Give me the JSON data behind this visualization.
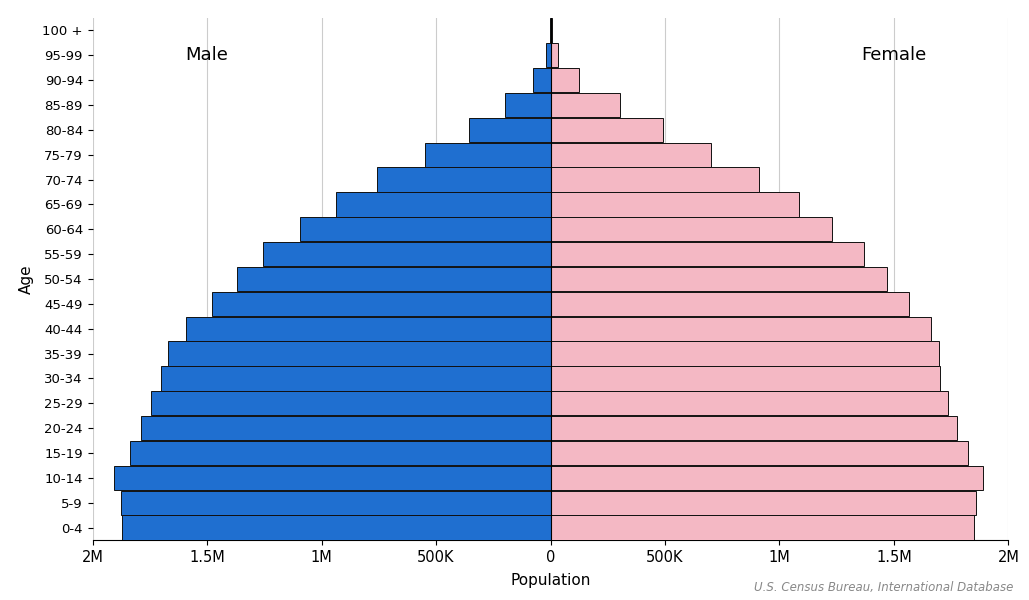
{
  "xlabel": "Population",
  "ylabel": "Age",
  "source": "U.S. Census Bureau, International Database",
  "age_groups": [
    "0-4",
    "5-9",
    "10-14",
    "15-19",
    "20-24",
    "25-29",
    "30-34",
    "35-39",
    "40-44",
    "45-49",
    "50-54",
    "55-59",
    "60-64",
    "65-69",
    "70-74",
    "75-79",
    "80-84",
    "85-89",
    "90-94",
    "95-99",
    "100 +"
  ],
  "male": [
    1870000,
    1875000,
    1905000,
    1835000,
    1790000,
    1745000,
    1700000,
    1670000,
    1590000,
    1480000,
    1370000,
    1255000,
    1095000,
    935000,
    760000,
    550000,
    355000,
    200000,
    75000,
    18000,
    3500
  ],
  "female": [
    1850000,
    1860000,
    1890000,
    1825000,
    1775000,
    1735000,
    1700000,
    1695000,
    1660000,
    1565000,
    1470000,
    1370000,
    1230000,
    1085000,
    910000,
    700000,
    490000,
    305000,
    125000,
    33000,
    5500
  ],
  "male_color": "#1f6fd0",
  "female_color": "#f4b8c4",
  "male_edgecolor": "#111111",
  "female_edgecolor": "#111111",
  "bar_linewidth": 0.7,
  "bar_height": 0.98,
  "xlim": 2000000,
  "xtick_values": [
    -2000000,
    -1500000,
    -1000000,
    -500000,
    0,
    500000,
    1000000,
    1500000,
    2000000
  ],
  "xtick_labels": [
    "2M",
    "1.5M",
    "1M",
    "500K",
    "0",
    "500K",
    "1M",
    "1.5M",
    "2M"
  ],
  "grid_color": "#cccccc",
  "background_color": "#ffffff",
  "male_label": "Male",
  "female_label": "Female",
  "label_fontsize": 13,
  "axis_fontsize": 11,
  "tick_fontsize": 10.5,
  "ytick_fontsize": 9.5,
  "source_fontsize": 8.5
}
